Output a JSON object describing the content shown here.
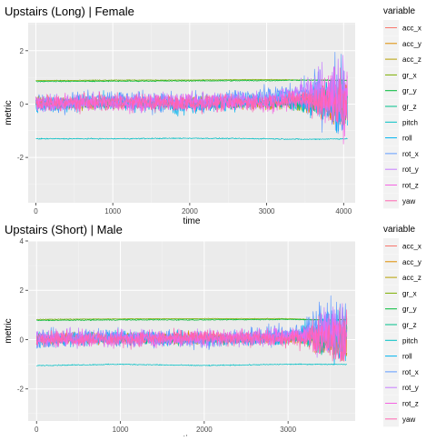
{
  "chart_data": [
    {
      "type": "line",
      "title": "Upstairs (Long) | Female",
      "xlabel": "time",
      "ylabel": "metric",
      "xlim": [
        -100,
        4150
      ],
      "ylim": [
        -3.7,
        3.05
      ],
      "xticks": [
        0,
        1000,
        2000,
        3000,
        4000
      ],
      "yticks": [
        -2,
        0,
        2
      ],
      "grid": true,
      "legend": {
        "title": "variable",
        "placement": "right",
        "entries": [
          "acc_x",
          "acc_y",
          "acc_z",
          "gr_x",
          "gr_y",
          "gr_z",
          "pitch",
          "roll",
          "rot_x",
          "rot_y",
          "rot_z",
          "yaw"
        ]
      },
      "series": [
        {
          "name": "acc_x",
          "color": "#F8766D",
          "x": [
            0,
            1000,
            2000,
            3000,
            3500,
            4050
          ],
          "y": [
            0.0,
            0.1,
            0.0,
            0.1,
            0.2,
            0.1
          ]
        },
        {
          "name": "acc_y",
          "color": "#DE8C00",
          "x": [
            0,
            1000,
            2000,
            3000,
            3500,
            4050
          ],
          "y": [
            0.1,
            0.0,
            0.1,
            0.0,
            0.1,
            0.0
          ]
        },
        {
          "name": "acc_z",
          "color": "#B79F00",
          "x": [
            0,
            1000,
            2000,
            3000,
            3500,
            4050
          ],
          "y": [
            0.0,
            0.0,
            0.1,
            0.0,
            0.0,
            0.1
          ]
        },
        {
          "name": "gr_x",
          "color": "#7CAE00",
          "x": [
            0,
            1000,
            2000,
            3000,
            3500,
            4050
          ],
          "y": [
            0.88,
            0.9,
            0.9,
            0.92,
            0.9,
            0.9
          ]
        },
        {
          "name": "gr_y",
          "color": "#00BA38",
          "x": [
            0,
            1000,
            2000,
            3000,
            3500,
            4050
          ],
          "y": [
            0.85,
            0.86,
            0.87,
            0.88,
            0.9,
            0.88
          ]
        },
        {
          "name": "gr_z",
          "color": "#00C08B",
          "x": [
            0,
            1000,
            2000,
            3000,
            3500,
            4050
          ],
          "y": [
            0.0,
            0.05,
            0.0,
            0.05,
            0.0,
            0.05
          ]
        },
        {
          "name": "pitch",
          "color": "#00BFC4",
          "x": [
            0,
            1000,
            2000,
            3000,
            3500,
            4050
          ],
          "y": [
            -1.3,
            -1.3,
            -1.28,
            -1.3,
            -1.32,
            -1.3
          ]
        },
        {
          "name": "roll",
          "color": "#00B4F0",
          "x": [
            0,
            1000,
            2000,
            3000,
            3500,
            4050
          ],
          "y": [
            -0.1,
            0.1,
            -0.1,
            0.2,
            0.1,
            0.0
          ]
        },
        {
          "name": "rot_x",
          "color": "#619CFF",
          "x": [
            0,
            1000,
            2000,
            3000,
            3500,
            4050
          ],
          "y": [
            0.0,
            0.2,
            0.0,
            0.3,
            0.4,
            0.2
          ]
        },
        {
          "name": "rot_y",
          "color": "#C77CFF",
          "x": [
            0,
            1000,
            2000,
            3000,
            3500,
            4050
          ],
          "y": [
            0.0,
            0.1,
            0.1,
            0.2,
            0.5,
            0.3
          ]
        },
        {
          "name": "rot_z",
          "color": "#F564E3",
          "x": [
            0,
            1000,
            2000,
            3000,
            3500,
            4050
          ],
          "y": [
            0.1,
            0.0,
            0.1,
            0.0,
            0.2,
            0.1
          ]
        },
        {
          "name": "yaw",
          "color": "#FF64B0",
          "x": [
            0,
            1000,
            2000,
            3000,
            3500,
            4050
          ],
          "y": [
            0.0,
            0.1,
            0.0,
            0.1,
            0.2,
            0.0
          ]
        }
      ]
    },
    {
      "type": "line",
      "title": "Upstairs (Short) | Male",
      "xlabel": "time",
      "ylabel": "metric",
      "xlim": [
        -100,
        3800
      ],
      "ylim": [
        -3.3,
        4.0
      ],
      "xticks": [
        0,
        1000,
        2000,
        3000
      ],
      "yticks": [
        -2,
        0,
        2,
        4
      ],
      "grid": true,
      "legend": {
        "title": "variable",
        "placement": "right",
        "entries": [
          "acc_x",
          "acc_y",
          "acc_z",
          "gr_x",
          "gr_y",
          "gr_z",
          "pitch",
          "roll",
          "rot_x",
          "rot_y",
          "rot_z",
          "yaw"
        ]
      },
      "series": [
        {
          "name": "acc_x",
          "color": "#F8766D",
          "x": [
            0,
            1000,
            2000,
            3000,
            3400,
            3700
          ],
          "y": [
            0.0,
            0.1,
            0.0,
            0.1,
            0.2,
            0.0
          ]
        },
        {
          "name": "acc_y",
          "color": "#DE8C00",
          "x": [
            0,
            1000,
            2000,
            3000,
            3400,
            3700
          ],
          "y": [
            0.1,
            0.0,
            0.1,
            0.0,
            0.1,
            0.1
          ]
        },
        {
          "name": "acc_z",
          "color": "#B79F00",
          "x": [
            0,
            1000,
            2000,
            3000,
            3400,
            3700
          ],
          "y": [
            0.0,
            0.1,
            0.0,
            0.1,
            0.0,
            0.0
          ]
        },
        {
          "name": "gr_x",
          "color": "#7CAE00",
          "x": [
            0,
            1000,
            2000,
            3000,
            3400,
            3700
          ],
          "y": [
            0.82,
            0.84,
            0.85,
            0.85,
            0.8,
            0.82
          ]
        },
        {
          "name": "gr_y",
          "color": "#00BA38",
          "x": [
            0,
            1000,
            2000,
            3000,
            3400,
            3700
          ],
          "y": [
            0.78,
            0.8,
            0.8,
            0.82,
            0.8,
            0.8
          ]
        },
        {
          "name": "gr_z",
          "color": "#00C08B",
          "x": [
            0,
            1000,
            2000,
            3000,
            3400,
            3700
          ],
          "y": [
            0.0,
            0.05,
            0.0,
            0.05,
            0.0,
            0.05
          ]
        },
        {
          "name": "pitch",
          "color": "#00BFC4",
          "x": [
            0,
            1000,
            2000,
            3000,
            3400,
            3700
          ],
          "y": [
            -1.05,
            -1.0,
            -1.05,
            -1.0,
            -1.0,
            -1.0
          ]
        },
        {
          "name": "roll",
          "color": "#00B4F0",
          "x": [
            0,
            1000,
            2000,
            3000,
            3400,
            3700
          ],
          "y": [
            0.0,
            0.1,
            0.0,
            0.1,
            0.3,
            0.1
          ]
        },
        {
          "name": "rot_x",
          "color": "#619CFF",
          "x": [
            0,
            1000,
            2000,
            3000,
            3400,
            3700
          ],
          "y": [
            0.0,
            0.1,
            0.0,
            0.2,
            0.5,
            0.3
          ]
        },
        {
          "name": "rot_y",
          "color": "#C77CFF",
          "x": [
            0,
            1000,
            2000,
            3000,
            3400,
            3700
          ],
          "y": [
            0.1,
            0.1,
            0.0,
            0.2,
            0.3,
            0.2
          ]
        },
        {
          "name": "rot_z",
          "color": "#F564E3",
          "x": [
            0,
            1000,
            2000,
            3000,
            3400,
            3700
          ],
          "y": [
            0.0,
            0.0,
            0.1,
            0.1,
            0.2,
            0.0
          ]
        },
        {
          "name": "yaw",
          "color": "#FF64B0",
          "x": [
            0,
            1000,
            2000,
            3000,
            3400,
            3700
          ],
          "y": [
            0.1,
            0.0,
            0.1,
            0.0,
            0.1,
            0.0
          ]
        }
      ]
    }
  ]
}
